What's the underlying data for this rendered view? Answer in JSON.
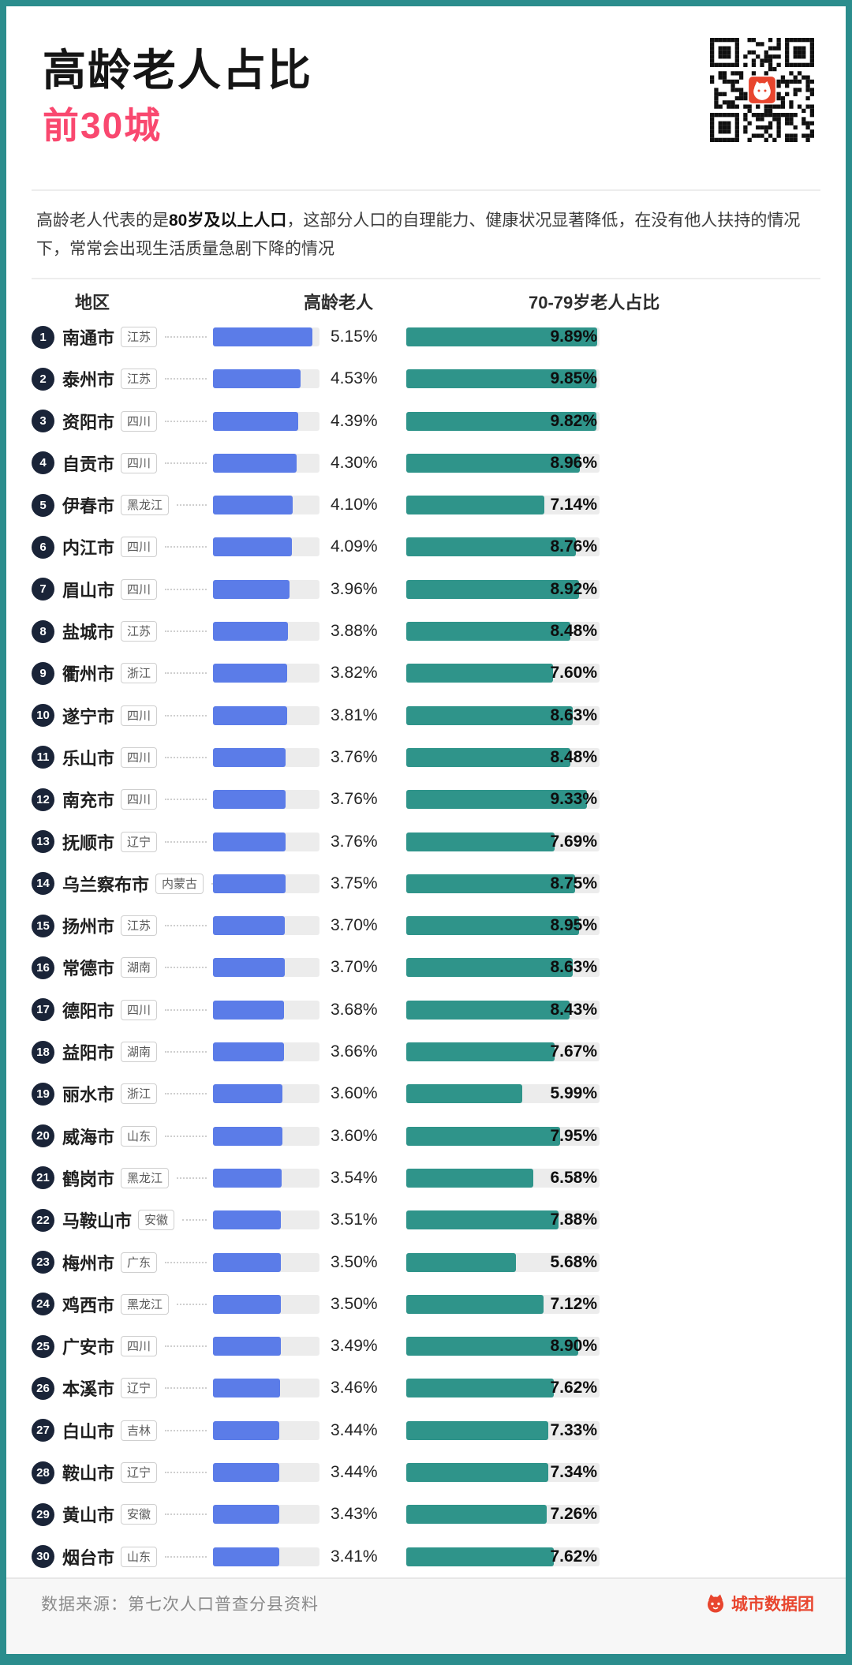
{
  "header": {
    "title": "高龄老人占比",
    "subtitle": "前30城",
    "desc_prefix": "高龄老人代表的是",
    "desc_bold": "80岁及以上人口",
    "desc_suffix": "，这部分人口的自理能力、健康状况显著降低，在没有他人扶持的情况下，常常会出现生活质量急剧下降的情况"
  },
  "columns": {
    "region": "地区",
    "elderly": "高龄老人",
    "seventies": "70-79岁老人占比"
  },
  "footer": {
    "source": "数据来源：第七次人口普查分县资料",
    "brand": "城市数据团"
  },
  "colors": {
    "frame_teal": "#2b8d8d",
    "elderly_bar_blue": "#5b7ce8",
    "seventies_bar_teal": "#2f948a",
    "subtitle_pink": "#f9486f",
    "rank_badge_navy": "#1a2438",
    "brand_orange": "#e8452e",
    "track_gray": "#ececec"
  },
  "chart_data": {
    "type": "bar",
    "title": "高龄老人占比 前30城",
    "columns": [
      "地区",
      "高龄老人",
      "70-79岁老人占比"
    ],
    "legend_position": "top",
    "elderly_axis_max": 5.5,
    "seventies_axis_max": 10.0,
    "rows": [
      {
        "rank": 1,
        "city": "南通市",
        "province": "江苏",
        "elderly_pct": 5.15,
        "seventies_pct": 9.89
      },
      {
        "rank": 2,
        "city": "泰州市",
        "province": "江苏",
        "elderly_pct": 4.53,
        "seventies_pct": 9.85
      },
      {
        "rank": 3,
        "city": "资阳市",
        "province": "四川",
        "elderly_pct": 4.39,
        "seventies_pct": 9.82
      },
      {
        "rank": 4,
        "city": "自贡市",
        "province": "四川",
        "elderly_pct": 4.3,
        "seventies_pct": 8.96
      },
      {
        "rank": 5,
        "city": "伊春市",
        "province": "黑龙江",
        "elderly_pct": 4.1,
        "seventies_pct": 7.14
      },
      {
        "rank": 6,
        "city": "内江市",
        "province": "四川",
        "elderly_pct": 4.09,
        "seventies_pct": 8.76
      },
      {
        "rank": 7,
        "city": "眉山市",
        "province": "四川",
        "elderly_pct": 3.96,
        "seventies_pct": 8.92
      },
      {
        "rank": 8,
        "city": "盐城市",
        "province": "江苏",
        "elderly_pct": 3.88,
        "seventies_pct": 8.48
      },
      {
        "rank": 9,
        "city": "衢州市",
        "province": "浙江",
        "elderly_pct": 3.82,
        "seventies_pct": 7.6
      },
      {
        "rank": 10,
        "city": "遂宁市",
        "province": "四川",
        "elderly_pct": 3.81,
        "seventies_pct": 8.63
      },
      {
        "rank": 11,
        "city": "乐山市",
        "province": "四川",
        "elderly_pct": 3.76,
        "seventies_pct": 8.48
      },
      {
        "rank": 12,
        "city": "南充市",
        "province": "四川",
        "elderly_pct": 3.76,
        "seventies_pct": 9.33
      },
      {
        "rank": 13,
        "city": "抚顺市",
        "province": "辽宁",
        "elderly_pct": 3.76,
        "seventies_pct": 7.69
      },
      {
        "rank": 14,
        "city": "乌兰察布市",
        "province": "内蒙古",
        "elderly_pct": 3.75,
        "seventies_pct": 8.75
      },
      {
        "rank": 15,
        "city": "扬州市",
        "province": "江苏",
        "elderly_pct": 3.7,
        "seventies_pct": 8.95
      },
      {
        "rank": 16,
        "city": "常德市",
        "province": "湖南",
        "elderly_pct": 3.7,
        "seventies_pct": 8.63
      },
      {
        "rank": 17,
        "city": "德阳市",
        "province": "四川",
        "elderly_pct": 3.68,
        "seventies_pct": 8.43
      },
      {
        "rank": 18,
        "city": "益阳市",
        "province": "湖南",
        "elderly_pct": 3.66,
        "seventies_pct": 7.67
      },
      {
        "rank": 19,
        "city": "丽水市",
        "province": "浙江",
        "elderly_pct": 3.6,
        "seventies_pct": 5.99
      },
      {
        "rank": 20,
        "city": "威海市",
        "province": "山东",
        "elderly_pct": 3.6,
        "seventies_pct": 7.95
      },
      {
        "rank": 21,
        "city": "鹤岗市",
        "province": "黑龙江",
        "elderly_pct": 3.54,
        "seventies_pct": 6.58
      },
      {
        "rank": 22,
        "city": "马鞍山市",
        "province": "安徽",
        "elderly_pct": 3.51,
        "seventies_pct": 7.88
      },
      {
        "rank": 23,
        "city": "梅州市",
        "province": "广东",
        "elderly_pct": 3.5,
        "seventies_pct": 5.68
      },
      {
        "rank": 24,
        "city": "鸡西市",
        "province": "黑龙江",
        "elderly_pct": 3.5,
        "seventies_pct": 7.12
      },
      {
        "rank": 25,
        "city": "广安市",
        "province": "四川",
        "elderly_pct": 3.49,
        "seventies_pct": 8.9
      },
      {
        "rank": 26,
        "city": "本溪市",
        "province": "辽宁",
        "elderly_pct": 3.46,
        "seventies_pct": 7.62
      },
      {
        "rank": 27,
        "city": "白山市",
        "province": "吉林",
        "elderly_pct": 3.44,
        "seventies_pct": 7.33
      },
      {
        "rank": 28,
        "city": "鞍山市",
        "province": "辽宁",
        "elderly_pct": 3.44,
        "seventies_pct": 7.34
      },
      {
        "rank": 29,
        "city": "黄山市",
        "province": "安徽",
        "elderly_pct": 3.43,
        "seventies_pct": 7.26
      },
      {
        "rank": 30,
        "city": "烟台市",
        "province": "山东",
        "elderly_pct": 3.41,
        "seventies_pct": 7.62
      }
    ]
  }
}
